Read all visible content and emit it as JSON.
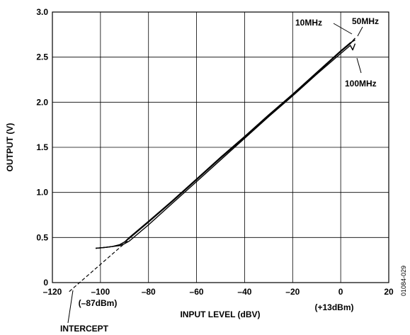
{
  "chart_data": {
    "type": "line",
    "xlabel": "INPUT LEVEL (dBV)",
    "ylabel": "OUTPUT (V)",
    "xlim": [
      -120,
      20
    ],
    "ylim": [
      0,
      3.0
    ],
    "xticks": [
      -120,
      -100,
      -80,
      -60,
      -40,
      -20,
      0,
      20
    ],
    "xtick_labels": [
      "–120",
      "–100",
      "–80",
      "–60",
      "–40",
      "–20",
      "0",
      "20"
    ],
    "yticks": [
      0,
      0.5,
      1.0,
      1.5,
      2.0,
      2.5,
      3.0
    ],
    "ytick_labels": [
      "0",
      "0.5",
      "1.0",
      "1.5",
      "2.0",
      "2.5",
      "3.0"
    ],
    "grid": true,
    "series": [
      {
        "name": "10MHz",
        "x": [
          -102,
          -98,
          -95,
          -92,
          -90,
          -88,
          -80,
          -70,
          -60,
          -50,
          -40,
          -30,
          -20,
          -10,
          0,
          4,
          6
        ],
        "y": [
          0.38,
          0.39,
          0.4,
          0.42,
          0.45,
          0.5,
          0.68,
          0.91,
          1.15,
          1.39,
          1.62,
          1.86,
          2.09,
          2.33,
          2.57,
          2.66,
          2.69
        ]
      },
      {
        "name": "50MHz",
        "x": [
          -102,
          -98,
          -95,
          -92,
          -90,
          -88,
          -80,
          -70,
          -60,
          -50,
          -40,
          -30,
          -20,
          -10,
          0,
          4,
          6
        ],
        "y": [
          0.38,
          0.39,
          0.4,
          0.42,
          0.45,
          0.49,
          0.67,
          0.9,
          1.14,
          1.38,
          1.61,
          1.85,
          2.08,
          2.32,
          2.56,
          2.65,
          2.71
        ]
      },
      {
        "name": "100MHz",
        "x": [
          -102,
          -98,
          -95,
          -92,
          -90,
          -88,
          -80,
          -70,
          -60,
          -50,
          -40,
          -30,
          -20,
          -10,
          0,
          4,
          5,
          6
        ],
        "y": [
          0.38,
          0.39,
          0.4,
          0.41,
          0.43,
          0.46,
          0.64,
          0.88,
          1.12,
          1.36,
          1.6,
          1.84,
          2.07,
          2.31,
          2.54,
          2.63,
          2.58,
          2.65
        ]
      }
    ],
    "extrapolation": {
      "x": [
        -113,
        -88
      ],
      "y": [
        -0.1,
        0.48
      ],
      "style": "dashed"
    },
    "annotations": {
      "intercept_label": "INTERCEPT",
      "intercept_value": "(–87dBm)",
      "high_value": "(+13dBm)",
      "label_10mhz": "10MHz",
      "label_50mhz": "50MHz",
      "label_100mhz": "100MHz",
      "figure_id": "01084-029"
    }
  }
}
